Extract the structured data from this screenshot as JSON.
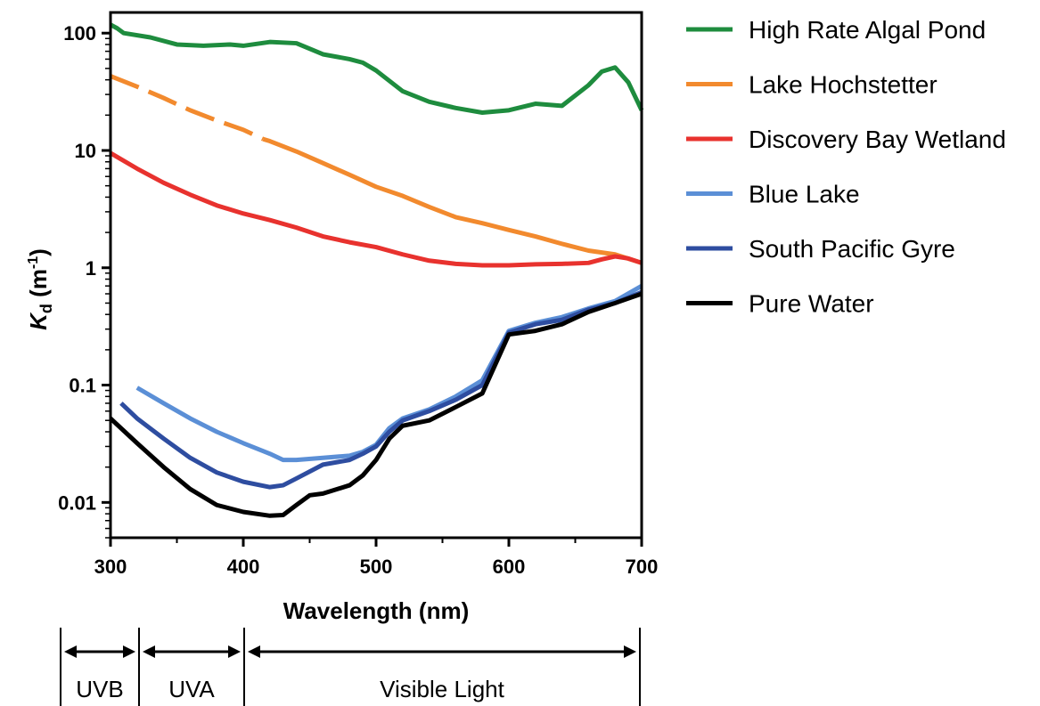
{
  "chart_data": {
    "type": "line",
    "xlabel": "Wavelength (nm)",
    "ylabel": {
      "symbol": "K",
      "subscript": "d",
      "unit": "(m",
      "sup": "-1",
      "close": ")"
    },
    "xlim": [
      300,
      700
    ],
    "ylim": [
      0.005,
      150
    ],
    "yscale": "log",
    "x_ticks": [
      "300",
      "400",
      "500",
      "600",
      "700"
    ],
    "y_ticks": [
      {
        "value": 0.01,
        "label": "0.01"
      },
      {
        "value": 0.1,
        "label": "0.1"
      },
      {
        "value": 1,
        "label": "1"
      },
      {
        "value": 10,
        "label": "10"
      },
      {
        "value": 100,
        "label": "100"
      }
    ],
    "grid": false,
    "legend_position": "right",
    "series": [
      {
        "name": "High Rate Algal Pond",
        "color": "#1e8c3e",
        "x": [
          300,
          305,
          310,
          330,
          350,
          370,
          390,
          400,
          420,
          440,
          460,
          480,
          490,
          500,
          520,
          540,
          560,
          580,
          600,
          620,
          640,
          660,
          670,
          680,
          690,
          700
        ],
        "y": [
          118,
          110,
          100,
          92,
          80,
          78,
          80,
          78,
          84,
          82,
          66,
          60,
          56,
          48,
          32,
          26,
          23,
          21,
          22,
          25,
          24,
          36,
          47,
          51,
          38,
          22
        ]
      },
      {
        "name": "Lake Hochstetter",
        "color": "#f28a2e",
        "dashed_until": 415,
        "x": [
          300,
          320,
          340,
          360,
          380,
          400,
          415,
          420,
          440,
          460,
          480,
          500,
          520,
          540,
          560,
          580,
          600,
          620,
          640,
          660,
          680,
          700
        ],
        "y": [
          43,
          35,
          28,
          22,
          18,
          15,
          12.5,
          12,
          9.8,
          7.8,
          6.2,
          4.9,
          4.1,
          3.3,
          2.7,
          2.4,
          2.1,
          1.85,
          1.6,
          1.4,
          1.3,
          1.1
        ]
      },
      {
        "name": "Discovery Bay Wetland",
        "color": "#e8322e",
        "x": [
          300,
          320,
          340,
          360,
          380,
          400,
          420,
          440,
          460,
          480,
          500,
          520,
          540,
          560,
          580,
          600,
          620,
          640,
          660,
          670,
          680,
          690,
          700
        ],
        "y": [
          9.5,
          7.0,
          5.3,
          4.2,
          3.4,
          2.9,
          2.55,
          2.2,
          1.85,
          1.65,
          1.5,
          1.3,
          1.15,
          1.08,
          1.05,
          1.05,
          1.07,
          1.08,
          1.1,
          1.18,
          1.25,
          1.2,
          1.1
        ]
      },
      {
        "name": "Blue Lake",
        "color": "#5b8fd6",
        "x": [
          320,
          340,
          360,
          380,
          400,
          420,
          430,
          440,
          460,
          480,
          490,
          500,
          510,
          520,
          540,
          560,
          580,
          600,
          620,
          640,
          660,
          680,
          700
        ],
        "y": [
          0.095,
          0.07,
          0.052,
          0.04,
          0.032,
          0.026,
          0.023,
          0.023,
          0.024,
          0.025,
          0.027,
          0.031,
          0.043,
          0.052,
          0.062,
          0.08,
          0.11,
          0.29,
          0.34,
          0.38,
          0.45,
          0.52,
          0.7
        ]
      },
      {
        "name": "South Pacific Gyre",
        "color": "#2e4da0",
        "x": [
          308,
          320,
          340,
          360,
          380,
          400,
          420,
          430,
          440,
          460,
          480,
          490,
          500,
          510,
          520,
          540,
          560,
          580,
          600,
          620,
          640,
          660,
          680,
          700
        ],
        "y": [
          0.07,
          0.052,
          0.035,
          0.024,
          0.018,
          0.015,
          0.0135,
          0.014,
          0.016,
          0.021,
          0.023,
          0.026,
          0.03,
          0.04,
          0.05,
          0.06,
          0.075,
          0.1,
          0.28,
          0.33,
          0.36,
          0.44,
          0.5,
          0.62
        ]
      },
      {
        "name": "Pure Water",
        "color": "#000000",
        "x": [
          300,
          320,
          340,
          360,
          380,
          400,
          420,
          430,
          440,
          450,
          460,
          480,
          490,
          500,
          510,
          520,
          540,
          560,
          580,
          600,
          620,
          640,
          660,
          680,
          700
        ],
        "y": [
          0.052,
          0.032,
          0.02,
          0.013,
          0.0095,
          0.0083,
          0.0077,
          0.0078,
          0.0095,
          0.0115,
          0.0119,
          0.014,
          0.017,
          0.023,
          0.035,
          0.045,
          0.05,
          0.065,
          0.085,
          0.27,
          0.29,
          0.33,
          0.42,
          0.5,
          0.6
        ]
      }
    ],
    "bands": [
      {
        "label": "UVB",
        "from": 300,
        "to": 330
      },
      {
        "label": "UVA",
        "from": 330,
        "to": 400
      },
      {
        "label": "Visible Light",
        "from": 400,
        "to": 700
      }
    ]
  }
}
